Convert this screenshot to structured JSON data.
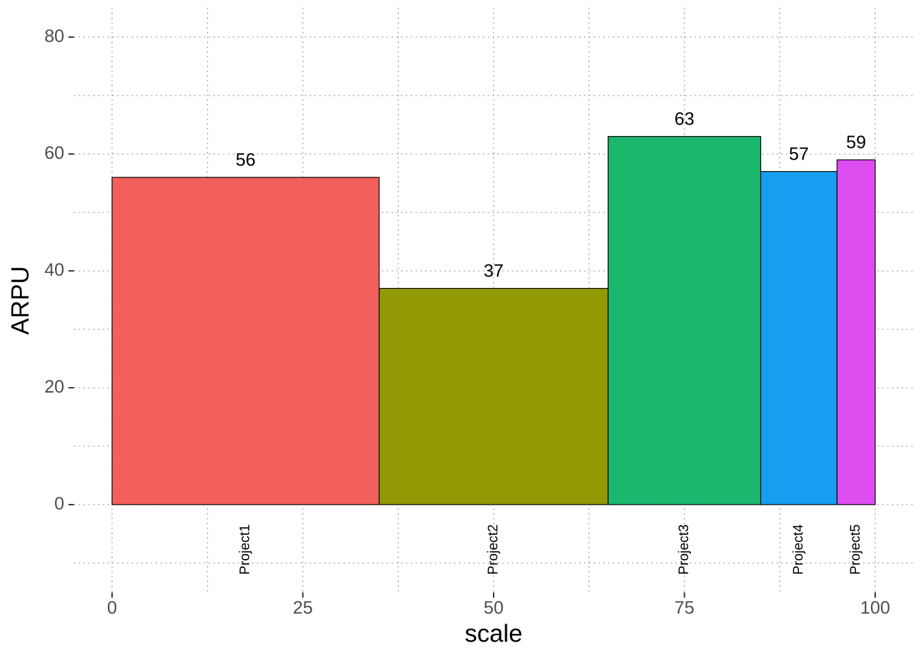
{
  "chart_data": {
    "type": "variable-width-bar",
    "x_label": "scale",
    "y_label": "ARPU",
    "categories": [
      "Project1",
      "Project2",
      "Project3",
      "Project4",
      "Project5"
    ],
    "widths": [
      35,
      30,
      20,
      10,
      5
    ],
    "values": [
      56,
      37,
      63,
      57,
      59
    ],
    "colors": [
      "#F2605C",
      "#919904",
      "#1BB76D",
      "#169FF0",
      "#DD4DF0"
    ],
    "xlim": [
      -5,
      105
    ],
    "ylim": [
      -15,
      85
    ],
    "xticks": [
      0,
      25,
      50,
      75,
      100
    ],
    "yticks": [
      0,
      20,
      40,
      60,
      80
    ],
    "x_minor_ticks": [
      12.5,
      37.5,
      62.5,
      87.5
    ],
    "y_minor_ticks": [
      -10,
      10,
      30,
      50,
      70
    ],
    "grid": true
  }
}
